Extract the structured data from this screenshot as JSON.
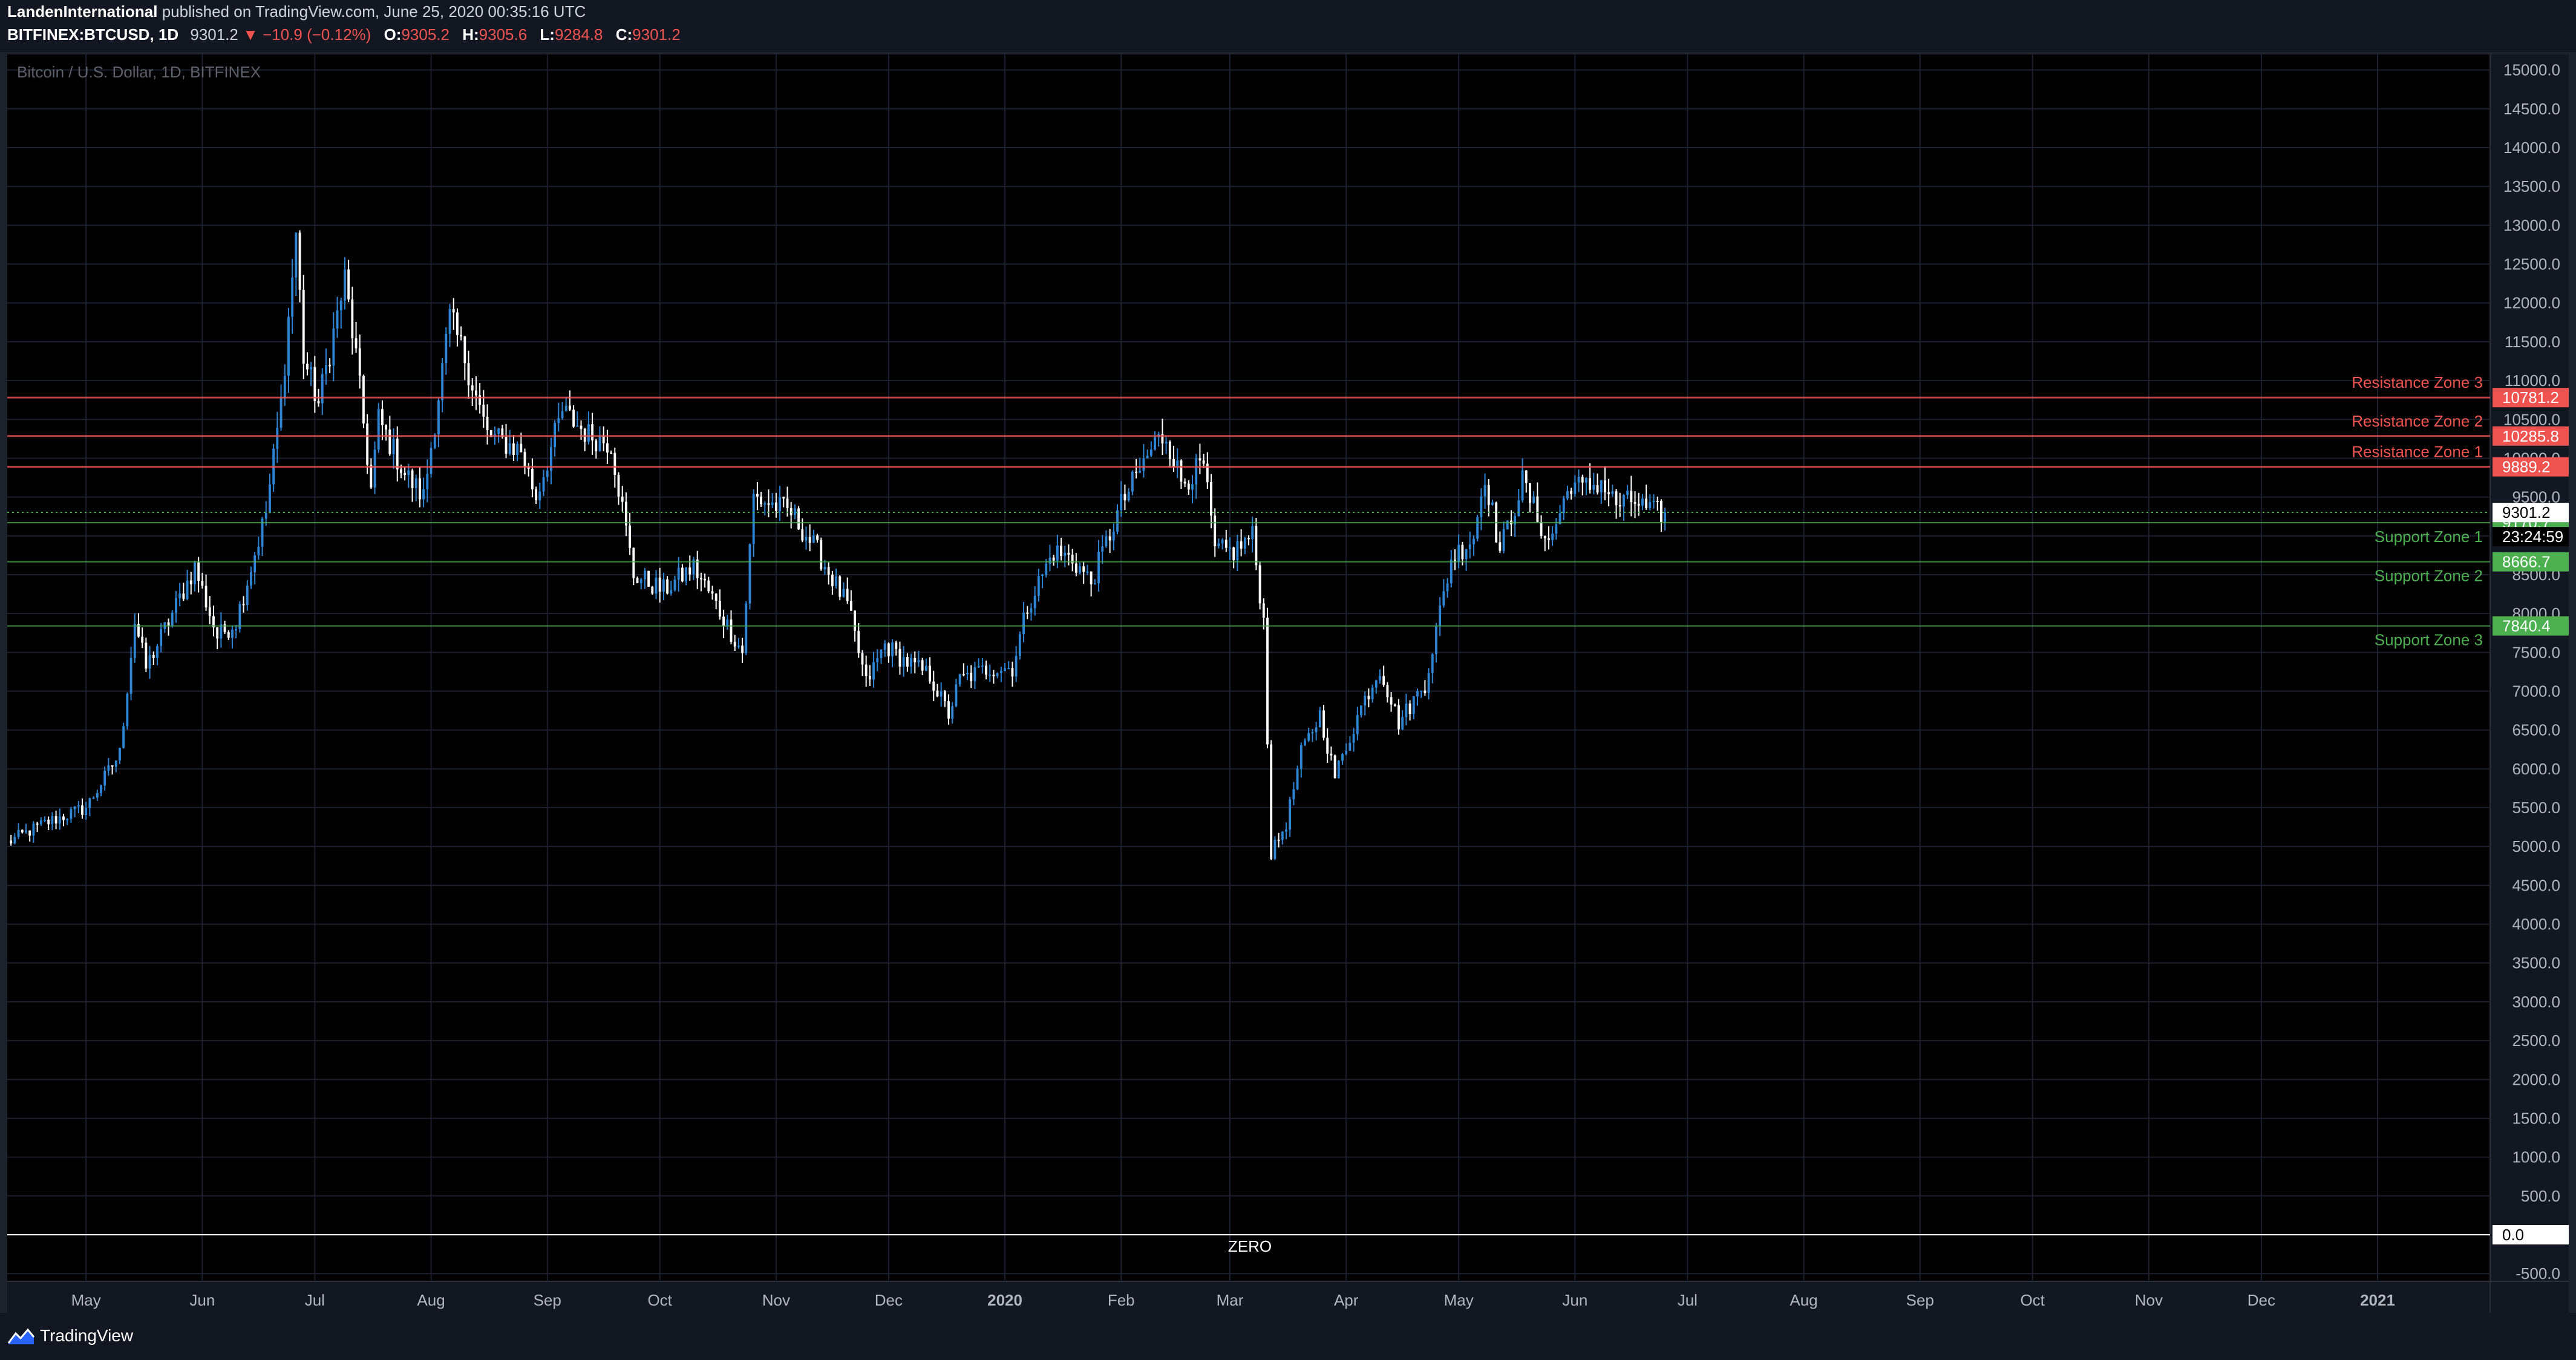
{
  "header": {
    "author": "LandenInternational",
    "published_text": "published on TradingView.com, June 25, 2020 00:35:16 UTC",
    "symbol": "BITFINEX:BTCUSD, 1D",
    "last": "9301.2",
    "change": "▼ −10.9 (−0.12%)",
    "o_label": "O:",
    "o_value": "9305.2",
    "h_label": "H:",
    "h_value": "9305.6",
    "l_label": "L:",
    "l_value": "9284.8",
    "c_label": "C:",
    "c_value": "9301.2"
  },
  "footer": {
    "brand": "TradingView",
    "logo_icon": "tradingview-logo-icon"
  },
  "colors": {
    "background": "#000000",
    "grid": "#1c2030",
    "bull": "#2f86d6",
    "bear": "#ffffff",
    "resistance": "#ef5350",
    "support": "#4caf50"
  },
  "chart_data": {
    "type": "candlestick",
    "title": "Bitcoin / U.S. Dollar, 1D, BITFINEX",
    "timeframe": "1D",
    "x_range": [
      "2019-04-10",
      "2021-01-31"
    ],
    "y_range": [
      -600,
      15200
    ],
    "y_ticks": [
      "15000.0",
      "14500.0",
      "14000.0",
      "13500.0",
      "13000.0",
      "12500.0",
      "12000.0",
      "11500.0",
      "11000.0",
      "10500.0",
      "10000.0",
      "9500.0",
      "9000.0",
      "8500.0",
      "8000.0",
      "7500.0",
      "7000.0",
      "6500.0",
      "6000.0",
      "5500.0",
      "5000.0",
      "4500.0",
      "4000.0",
      "3500.0",
      "3000.0",
      "2500.0",
      "2000.0",
      "1500.0",
      "1000.0",
      "500.0",
      "0.0",
      "-500.0"
    ],
    "x_ticks": [
      {
        "label": "May",
        "date": "2019-05-01"
      },
      {
        "label": "Jun",
        "date": "2019-06-01"
      },
      {
        "label": "Jul",
        "date": "2019-07-01"
      },
      {
        "label": "Aug",
        "date": "2019-08-01"
      },
      {
        "label": "Sep",
        "date": "2019-09-01"
      },
      {
        "label": "Oct",
        "date": "2019-10-01"
      },
      {
        "label": "Nov",
        "date": "2019-11-01"
      },
      {
        "label": "Dec",
        "date": "2019-12-01"
      },
      {
        "label": "2020",
        "date": "2020-01-01",
        "bold": true
      },
      {
        "label": "Feb",
        "date": "2020-02-01"
      },
      {
        "label": "Mar",
        "date": "2020-03-01"
      },
      {
        "label": "Apr",
        "date": "2020-04-01"
      },
      {
        "label": "May",
        "date": "2020-05-01"
      },
      {
        "label": "Jun",
        "date": "2020-06-01"
      },
      {
        "label": "Jul",
        "date": "2020-07-01"
      },
      {
        "label": "Aug",
        "date": "2020-08-01"
      },
      {
        "label": "Sep",
        "date": "2020-09-01"
      },
      {
        "label": "Oct",
        "date": "2020-10-01"
      },
      {
        "label": "Nov",
        "date": "2020-11-01"
      },
      {
        "label": "Dec",
        "date": "2020-12-01"
      },
      {
        "label": "2021",
        "date": "2021-01-01",
        "bold": true
      }
    ],
    "price_path": [
      [
        "2019-04-10",
        5050
      ],
      [
        "2019-04-20",
        5300
      ],
      [
        "2019-05-01",
        5500
      ],
      [
        "2019-05-10",
        6200
      ],
      [
        "2019-05-14",
        7900
      ],
      [
        "2019-05-17",
        7300
      ],
      [
        "2019-05-25",
        8100
      ],
      [
        "2019-05-30",
        8600
      ],
      [
        "2019-06-05",
        7700
      ],
      [
        "2019-06-10",
        7900
      ],
      [
        "2019-06-18",
        9300
      ],
      [
        "2019-06-22",
        10700
      ],
      [
        "2019-06-26",
        12900
      ],
      [
        "2019-06-28",
        11300
      ],
      [
        "2019-07-02",
        10700
      ],
      [
        "2019-07-09",
        12300
      ],
      [
        "2019-07-12",
        11300
      ],
      [
        "2019-07-16",
        9600
      ],
      [
        "2019-07-18",
        10500
      ],
      [
        "2019-07-25",
        9800
      ],
      [
        "2019-07-30",
        9500
      ],
      [
        "2019-08-06",
        11800
      ],
      [
        "2019-08-10",
        11300
      ],
      [
        "2019-08-16",
        10300
      ],
      [
        "2019-08-25",
        10100
      ],
      [
        "2019-08-29",
        9500
      ],
      [
        "2019-09-05",
        10600
      ],
      [
        "2019-09-12",
        10300
      ],
      [
        "2019-09-18",
        10200
      ],
      [
        "2019-09-24",
        8500
      ],
      [
        "2019-10-02",
        8300
      ],
      [
        "2019-10-10",
        8600
      ],
      [
        "2019-10-15",
        8200
      ],
      [
        "2019-10-23",
        7500
      ],
      [
        "2019-10-26",
        9500
      ],
      [
        "2019-11-05",
        9300
      ],
      [
        "2019-11-12",
        8800
      ],
      [
        "2019-11-20",
        8100
      ],
      [
        "2019-11-25",
        7100
      ],
      [
        "2019-11-30",
        7600
      ],
      [
        "2019-12-05",
        7400
      ],
      [
        "2019-12-12",
        7200
      ],
      [
        "2019-12-17",
        6700
      ],
      [
        "2019-12-20",
        7150
      ],
      [
        "2019-12-28",
        7300
      ],
      [
        "2020-01-03",
        7300
      ],
      [
        "2020-01-07",
        8100
      ],
      [
        "2020-01-14",
        8800
      ],
      [
        "2020-01-19",
        8700
      ],
      [
        "2020-01-24",
        8400
      ],
      [
        "2020-02-01",
        9400
      ],
      [
        "2020-02-10",
        10200
      ],
      [
        "2020-02-13",
        10300
      ],
      [
        "2020-02-17",
        9700
      ],
      [
        "2020-02-23",
        9900
      ],
      [
        "2020-02-26",
        8800
      ],
      [
        "2020-03-02",
        8800
      ],
      [
        "2020-03-07",
        9000
      ],
      [
        "2020-03-10",
        7900
      ],
      [
        "2020-03-12",
        4900
      ],
      [
        "2020-03-16",
        5300
      ],
      [
        "2020-03-20",
        6200
      ],
      [
        "2020-03-25",
        6700
      ],
      [
        "2020-03-29",
        5900
      ],
      [
        "2020-04-05",
        6800
      ],
      [
        "2020-04-10",
        7300
      ],
      [
        "2020-04-15",
        6600
      ],
      [
        "2020-04-22",
        7100
      ],
      [
        "2020-04-29",
        8700
      ],
      [
        "2020-05-05",
        9000
      ],
      [
        "2020-05-08",
        9800
      ],
      [
        "2020-05-12",
        8800
      ],
      [
        "2020-05-18",
        9700
      ],
      [
        "2020-05-25",
        8900
      ],
      [
        "2020-05-31",
        9700
      ],
      [
        "2020-06-03",
        9600
      ],
      [
        "2020-06-08",
        9700
      ],
      [
        "2020-06-12",
        9400
      ],
      [
        "2020-06-17",
        9450
      ],
      [
        "2020-06-21",
        9300
      ],
      [
        "2020-06-25",
        9301.2
      ]
    ],
    "levels": [
      {
        "name": "Resistance Zone 3",
        "value": 10781.2,
        "label": "10781.2",
        "kind": "resistance"
      },
      {
        "name": "Resistance Zone 2",
        "value": 10285.8,
        "label": "10285.8",
        "kind": "resistance"
      },
      {
        "name": "Resistance Zone 1",
        "value": 9889.2,
        "label": "9889.2",
        "kind": "resistance"
      },
      {
        "name": "Support Zone 1",
        "value": 9170.7,
        "label": "9170.7",
        "kind": "support"
      },
      {
        "name": "Support Zone 2",
        "value": 8666.7,
        "label": "8666.7",
        "kind": "support"
      },
      {
        "name": "Support Zone 3",
        "value": 7840.4,
        "label": "7840.4",
        "kind": "support"
      }
    ],
    "current_price": {
      "value": 9301.2,
      "label": "9301.2",
      "countdown": "23:24:59"
    },
    "zero_line": {
      "value": 0,
      "label": "0.0",
      "text": "ZERO"
    },
    "grid": true,
    "legend": "none"
  }
}
